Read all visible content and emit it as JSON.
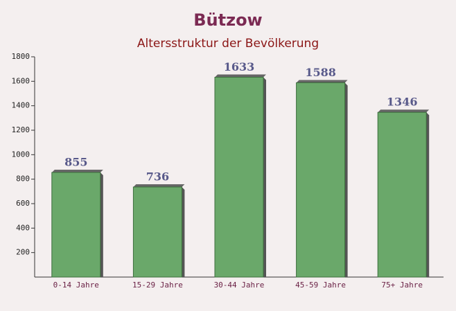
{
  "chart_data": {
    "type": "bar",
    "title": "Bützow",
    "subtitle": "Altersstruktur der Bevölkerung",
    "categories": [
      "0-14 Jahre",
      "15-29 Jahre",
      "30-44 Jahre",
      "45-59 Jahre",
      "75+ Jahre"
    ],
    "values": [
      855,
      736,
      1633,
      1588,
      1346
    ],
    "color": "#6aa86a",
    "ylim": [
      0,
      1800
    ],
    "yticks": [
      200,
      400,
      600,
      800,
      1000,
      1200,
      1400,
      1600,
      1800
    ]
  }
}
